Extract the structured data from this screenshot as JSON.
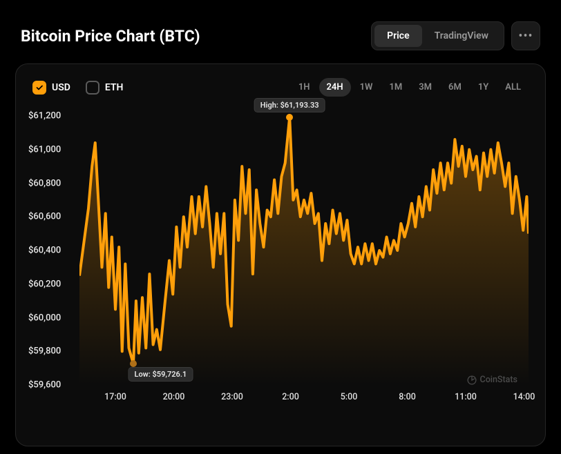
{
  "title": "Bitcoin Price Chart (BTC)",
  "view_tabs": {
    "items": [
      "Price",
      "TradingView"
    ],
    "active_index": 0
  },
  "currency_checks": [
    {
      "label": "USD",
      "checked": true
    },
    {
      "label": "ETH",
      "checked": false
    }
  ],
  "ranges": {
    "items": [
      "1H",
      "24H",
      "1W",
      "1M",
      "3M",
      "6M",
      "1Y",
      "ALL"
    ],
    "active_index": 1
  },
  "chart": {
    "type": "line-area",
    "line_color": "#ff9f0a",
    "line_width": 2,
    "area_gradient_top": "rgba(255,159,10,0.35)",
    "area_gradient_bottom": "rgba(255,159,10,0.0)",
    "background_color": "#0c0c0c",
    "marker_high_color": "#ff9f0a",
    "marker_low_color": "#b07018",
    "ylim": [
      59600,
      61200
    ],
    "ytick_labels": [
      "$61,200",
      "$61,000",
      "$60,800",
      "$60,600",
      "$60,400",
      "$60,200",
      "$60,000",
      "$59,800",
      "$59,600"
    ],
    "ytick_values": [
      61200,
      61000,
      60800,
      60600,
      60400,
      60200,
      60000,
      59800,
      59600
    ],
    "xtick_labels": [
      "17:00",
      "20:00",
      "23:00",
      "2:00",
      "5:00",
      "8:00",
      "11:00",
      "14:00"
    ],
    "xtick_positions": [
      8,
      21,
      34,
      47,
      60,
      73,
      86,
      99
    ],
    "high_annotation": {
      "text": "High: $61,193.33",
      "x": 46.8,
      "y_value": 61193.33
    },
    "low_annotation": {
      "text": "Low: $59,726.1",
      "x": 12.0,
      "y_value": 59726.1
    },
    "series": [
      [
        0,
        60250
      ],
      [
        1,
        60450
      ],
      [
        2,
        60650
      ],
      [
        2.8,
        60900
      ],
      [
        3.5,
        61040
      ],
      [
        4.2,
        60700
      ],
      [
        5,
        60300
      ],
      [
        5.8,
        60620
      ],
      [
        6.5,
        60180
      ],
      [
        7.2,
        60480
      ],
      [
        8,
        60050
      ],
      [
        8.8,
        60420
      ],
      [
        9.5,
        59800
      ],
      [
        10.2,
        60320
      ],
      [
        11,
        59820
      ],
      [
        12,
        59726
      ],
      [
        12.6,
        60100
      ],
      [
        13.2,
        59790
      ],
      [
        14,
        60120
      ],
      [
        14.8,
        59820
      ],
      [
        15.6,
        60260
      ],
      [
        16.4,
        59840
      ],
      [
        17.2,
        59930
      ],
      [
        18,
        59810
      ],
      [
        19,
        60080
      ],
      [
        20,
        60340
      ],
      [
        20.8,
        60140
      ],
      [
        21.6,
        60540
      ],
      [
        22.4,
        60300
      ],
      [
        23.2,
        60600
      ],
      [
        24,
        60420
      ],
      [
        25,
        60720
      ],
      [
        25.8,
        60500
      ],
      [
        26.6,
        60720
      ],
      [
        27.4,
        60540
      ],
      [
        28.2,
        60780
      ],
      [
        29,
        60560
      ],
      [
        29.8,
        60300
      ],
      [
        30.6,
        60620
      ],
      [
        31.4,
        60380
      ],
      [
        32.2,
        60620
      ],
      [
        33,
        60080
      ],
      [
        33.8,
        59950
      ],
      [
        34.6,
        60700
      ],
      [
        35.4,
        60460
      ],
      [
        36.2,
        60900
      ],
      [
        37,
        60620
      ],
      [
        37.8,
        60880
      ],
      [
        38.6,
        60260
      ],
      [
        39.4,
        60760
      ],
      [
        40.2,
        60560
      ],
      [
        41,
        60420
      ],
      [
        41.8,
        60640
      ],
      [
        42.6,
        60600
      ],
      [
        43.4,
        60820
      ],
      [
        44.2,
        60620
      ],
      [
        45,
        60840
      ],
      [
        45.8,
        60920
      ],
      [
        46.8,
        61193
      ],
      [
        47.6,
        60700
      ],
      [
        48.4,
        60760
      ],
      [
        49.2,
        60600
      ],
      [
        50,
        60700
      ],
      [
        50.8,
        60620
      ],
      [
        51.6,
        60740
      ],
      [
        52.4,
        60560
      ],
      [
        53.2,
        60620
      ],
      [
        54,
        60340
      ],
      [
        54.8,
        60560
      ],
      [
        55.6,
        60440
      ],
      [
        56.4,
        60640
      ],
      [
        57.2,
        60500
      ],
      [
        58,
        60620
      ],
      [
        58.8,
        60460
      ],
      [
        59.6,
        60580
      ],
      [
        60.4,
        60380
      ],
      [
        61.2,
        60320
      ],
      [
        62,
        60420
      ],
      [
        62.8,
        60320
      ],
      [
        63.6,
        60440
      ],
      [
        64.4,
        60340
      ],
      [
        65.2,
        60440
      ],
      [
        66,
        60320
      ],
      [
        66.8,
        60400
      ],
      [
        67.6,
        60360
      ],
      [
        68.4,
        60480
      ],
      [
        69.2,
        60380
      ],
      [
        70,
        60460
      ],
      [
        70.8,
        60400
      ],
      [
        71.6,
        60560
      ],
      [
        72.4,
        60480
      ],
      [
        73.2,
        60560
      ],
      [
        74,
        60680
      ],
      [
        74.8,
        60540
      ],
      [
        75.6,
        60720
      ],
      [
        76.4,
        60600
      ],
      [
        77.2,
        60780
      ],
      [
        78,
        60640
      ],
      [
        78.8,
        60880
      ],
      [
        79.6,
        60740
      ],
      [
        80.4,
        60920
      ],
      [
        81.2,
        60760
      ],
      [
        82,
        60920
      ],
      [
        82.8,
        60800
      ],
      [
        83.6,
        61060
      ],
      [
        84.4,
        60900
      ],
      [
        85.2,
        61020
      ],
      [
        86,
        60840
      ],
      [
        86.8,
        61000
      ],
      [
        87.6,
        60880
      ],
      [
        88.4,
        60960
      ],
      [
        89.2,
        60760
      ],
      [
        90,
        60980
      ],
      [
        90.8,
        60840
      ],
      [
        91.6,
        61000
      ],
      [
        92.4,
        60860
      ],
      [
        93.2,
        61040
      ],
      [
        94,
        60920
      ],
      [
        94.8,
        60780
      ],
      [
        95.6,
        60920
      ],
      [
        96.4,
        60620
      ],
      [
        97.2,
        60840
      ],
      [
        98,
        60700
      ],
      [
        98.8,
        60520
      ],
      [
        99.6,
        60720
      ],
      [
        100,
        60500
      ]
    ]
  },
  "watermark": "CoinStats"
}
